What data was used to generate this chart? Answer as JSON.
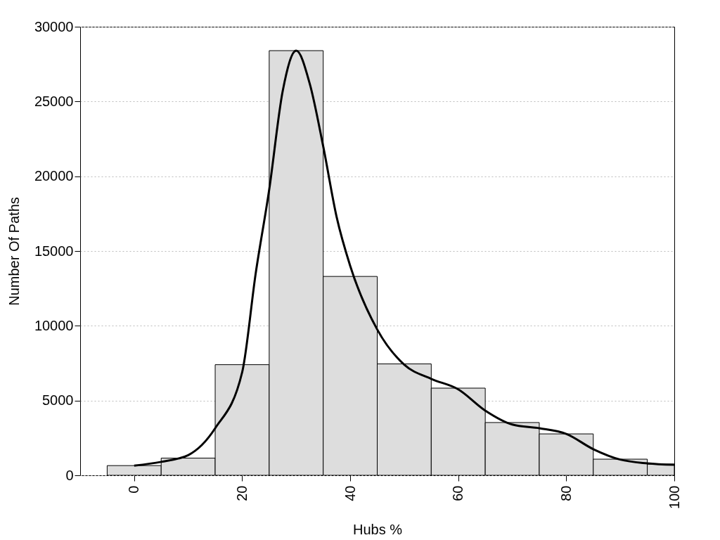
{
  "chart_data": {
    "type": "histogram",
    "xlabel": "Hubs %",
    "ylabel": "Number Of Paths",
    "bins": [
      -5,
      5,
      15,
      25,
      35,
      45,
      55,
      65,
      75,
      85,
      95,
      100
    ],
    "values": [
      650,
      1150,
      7400,
      28400,
      13300,
      7450,
      5830,
      3530,
      2770,
      1080,
      750
    ],
    "color": "#dddddd",
    "series": [
      {
        "type": "line",
        "color": "#000000",
        "x": [
          0,
          5,
          10,
          15,
          20,
          22.5,
          25,
          27.5,
          30,
          32.5,
          35,
          37.5,
          40,
          45,
          50,
          55,
          60,
          65,
          70,
          75,
          80,
          85,
          90,
          95,
          100
        ],
        "values": [
          650,
          900,
          1350,
          3150,
          6900,
          13500,
          19100,
          25700,
          28400,
          26200,
          22000,
          17250,
          14000,
          9750,
          7400,
          6450,
          5750,
          4330,
          3400,
          3150,
          2770,
          1750,
          1050,
          800,
          700
        ]
      }
    ],
    "xlim": [
      -10,
      100
    ],
    "xticks": [
      0,
      20,
      40,
      60,
      80,
      100
    ],
    "ylim": [
      0,
      30000
    ],
    "yticks": [
      0,
      5000,
      10000,
      15000,
      20000,
      25000,
      30000
    ],
    "grid": "y",
    "line_style": "solid",
    "marker": "none"
  }
}
